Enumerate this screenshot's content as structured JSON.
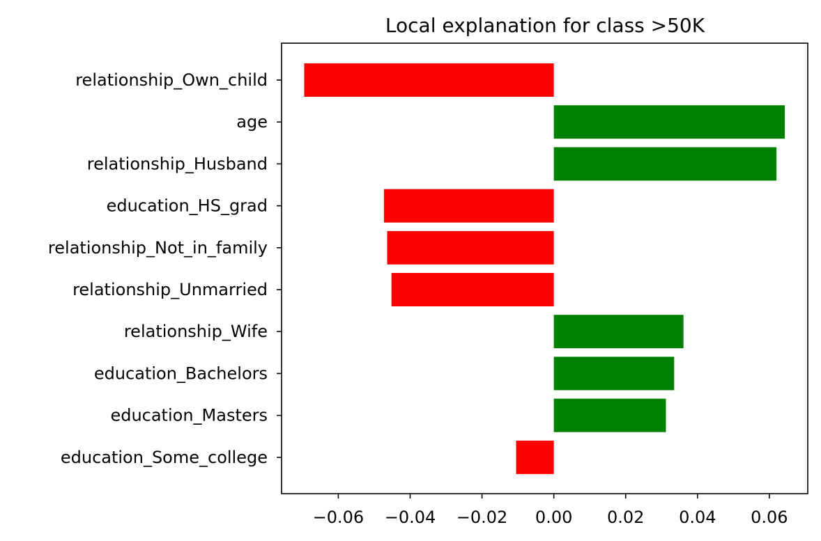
{
  "chart_data": {
    "type": "bar",
    "orientation": "horizontal",
    "title": "Local explanation for class >50K",
    "xlabel": "",
    "ylabel": "",
    "xlim": [
      -0.0758,
      0.0707
    ],
    "grid": false,
    "legend": "none",
    "x_ticks": [
      -0.06,
      -0.04,
      -0.02,
      0.0,
      0.02,
      0.04,
      0.06
    ],
    "x_tick_labels": [
      "−0.06",
      "−0.04",
      "−0.02",
      "0.00",
      "0.02",
      "0.04",
      "0.06"
    ],
    "categories": [
      "relationship_Own_child",
      "age",
      "relationship_Husband",
      "education_HS_grad",
      "relationship_Not_in_family",
      "relationship_Unmarried",
      "relationship_Wife",
      "education_Bachelors",
      "education_Masters",
      "education_Some_college"
    ],
    "values": [
      -0.0695,
      0.0643,
      0.062,
      -0.0473,
      -0.0464,
      -0.0452,
      0.0361,
      0.0335,
      0.0312,
      -0.0105
    ],
    "colors": {
      "positive": "#008000",
      "negative": "#ff0000"
    }
  }
}
